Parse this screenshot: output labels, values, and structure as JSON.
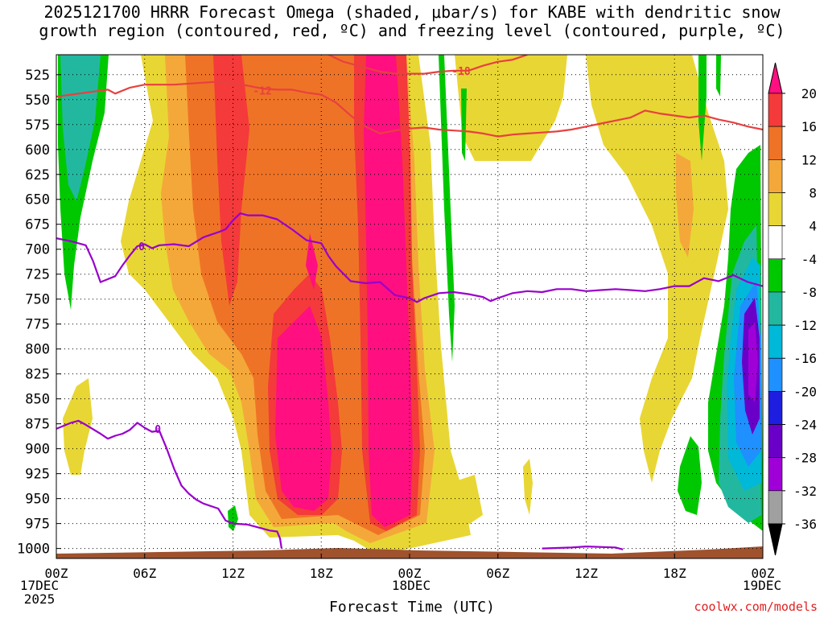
{
  "chart_data": {
    "type": "heatmap",
    "title_line1": "2025121700 HRRR Forecast Omega (shaded, μbar/s) for KABE with dendritic snow",
    "title_line2": "growth region (contoured, red, ºC) and freezing level (contoured, purple, ºC)",
    "xlabel": "Forecast Time (UTC)",
    "ylabel": "",
    "credit": "coolwx.com/models",
    "x_ticks": [
      "00Z",
      "06Z",
      "12Z",
      "18Z",
      "00Z",
      "06Z",
      "12Z",
      "18Z",
      "00Z"
    ],
    "x_dates": {
      "start": "17DEC",
      "start_year": "2025",
      "mid": "18DEC",
      "end": "19DEC"
    },
    "x_range_hours": [
      0,
      48
    ],
    "y_ticks": [
      "525",
      "550",
      "575",
      "600",
      "625",
      "650",
      "675",
      "700",
      "725",
      "750",
      "775",
      "800",
      "825",
      "850",
      "875",
      "900",
      "925",
      "950",
      "975",
      "1000"
    ],
    "y_range_hpa": [
      505,
      1010
    ],
    "colorbar_labels": [
      "20",
      "16",
      "12",
      "8",
      "4",
      "-4",
      "-8",
      "-12",
      "-16",
      "-20",
      "-24",
      "-28",
      "-32",
      "-36"
    ],
    "colorbar_colors": [
      "#ff0f80",
      "#f43a3a",
      "#ef7326",
      "#f4a83a",
      "#e8d634",
      "#ffffff",
      "#00c800",
      "#22b8a0",
      "#00b8d8",
      "#1e90ff",
      "#1e1ee0",
      "#6a00c8",
      "#a000d8",
      "#a0a0a0",
      "#000000"
    ],
    "dgz_contours": [
      {
        "label": "-12",
        "color": "#e84040",
        "points": [
          [
            0,
            547
          ],
          [
            2,
            543
          ],
          [
            3.5,
            540
          ],
          [
            4,
            544
          ],
          [
            5,
            538
          ],
          [
            6,
            535
          ],
          [
            8,
            535
          ],
          [
            10,
            533
          ],
          [
            11,
            532
          ],
          [
            12,
            534
          ],
          [
            13,
            536
          ],
          [
            14,
            539
          ],
          [
            15,
            540
          ],
          [
            16,
            540
          ],
          [
            17,
            543
          ],
          [
            18,
            545
          ],
          [
            19,
            553
          ],
          [
            20,
            566
          ],
          [
            21,
            577
          ],
          [
            22,
            584
          ],
          [
            23,
            581
          ],
          [
            24,
            579
          ],
          [
            25,
            578
          ],
          [
            26,
            580
          ],
          [
            27,
            581
          ],
          [
            28,
            582
          ],
          [
            29,
            584
          ],
          [
            30,
            587
          ],
          [
            31,
            585
          ],
          [
            32,
            584
          ],
          [
            33,
            583
          ],
          [
            34,
            582
          ],
          [
            35,
            580
          ],
          [
            36,
            577
          ],
          [
            37,
            574
          ],
          [
            38,
            571
          ],
          [
            39,
            568
          ],
          [
            40,
            561
          ],
          [
            41,
            564
          ],
          [
            42,
            566
          ],
          [
            43,
            568
          ],
          [
            44,
            566
          ],
          [
            45,
            570
          ],
          [
            46,
            573
          ],
          [
            47,
            577
          ],
          [
            48,
            580
          ]
        ],
        "label_at": [
          14,
          541
        ]
      },
      {
        "label": "-18",
        "color": "#e84040",
        "points": [
          [
            18.5,
            505
          ],
          [
            19.5,
            512
          ],
          [
            21,
            518
          ],
          [
            22,
            522
          ],
          [
            23,
            524
          ],
          [
            24,
            524
          ],
          [
            25,
            524
          ],
          [
            26,
            522
          ],
          [
            27,
            521
          ],
          [
            28,
            521
          ],
          [
            29,
            516
          ],
          [
            30,
            512
          ],
          [
            31,
            510
          ],
          [
            32,
            505
          ]
        ],
        "label_at": [
          27.5,
          521
        ]
      }
    ],
    "freezing_contours": [
      {
        "label": "0",
        "color": "#9900cc",
        "points": [
          [
            0,
            689
          ],
          [
            1,
            692
          ],
          [
            2,
            696
          ],
          [
            2.5,
            712
          ],
          [
            3,
            733
          ],
          [
            4,
            727
          ],
          [
            4.5,
            716
          ],
          [
            5,
            706
          ],
          [
            5.5,
            697
          ],
          [
            6,
            695
          ],
          [
            6.5,
            699
          ],
          [
            7,
            696
          ],
          [
            8,
            695
          ],
          [
            9,
            697
          ],
          [
            10,
            688
          ],
          [
            11,
            683
          ],
          [
            11.5,
            680
          ],
          [
            12,
            671
          ],
          [
            12.5,
            664
          ],
          [
            13,
            666
          ],
          [
            14,
            666
          ],
          [
            15,
            670
          ],
          [
            16,
            680
          ],
          [
            17,
            691
          ],
          [
            18,
            694
          ],
          [
            18.5,
            707
          ],
          [
            19,
            717
          ],
          [
            20,
            732
          ],
          [
            21,
            734
          ],
          [
            22,
            733
          ],
          [
            23,
            746
          ],
          [
            24,
            749
          ],
          [
            24.5,
            753
          ],
          [
            25,
            749
          ],
          [
            26,
            744
          ],
          [
            27,
            743
          ],
          [
            28,
            745
          ],
          [
            29,
            748
          ],
          [
            29.5,
            752
          ],
          [
            30,
            749
          ],
          [
            31,
            744
          ],
          [
            32,
            742
          ],
          [
            33,
            743
          ],
          [
            34,
            740
          ],
          [
            35,
            740
          ],
          [
            36,
            742
          ],
          [
            37,
            741
          ],
          [
            38,
            740
          ],
          [
            39,
            741
          ],
          [
            40,
            742
          ],
          [
            41,
            740
          ],
          [
            42,
            737
          ],
          [
            43,
            737
          ],
          [
            44,
            729
          ],
          [
            45,
            732
          ],
          [
            46,
            726
          ],
          [
            47,
            733
          ],
          [
            48,
            737
          ]
        ],
        "label_at": [
          5.8,
          697
        ]
      },
      {
        "label": "0",
        "color": "#9900cc",
        "points": [
          [
            0,
            880
          ],
          [
            0.5,
            877
          ],
          [
            1,
            874
          ],
          [
            1.5,
            872
          ],
          [
            2,
            876
          ],
          [
            3,
            885
          ],
          [
            3.5,
            890
          ],
          [
            4,
            887
          ],
          [
            4.5,
            885
          ],
          [
            5,
            881
          ],
          [
            5.5,
            874
          ],
          [
            6,
            879
          ],
          [
            6.5,
            883
          ],
          [
            7,
            882
          ],
          [
            7.5,
            900
          ],
          [
            8,
            920
          ],
          [
            8.5,
            937
          ],
          [
            9,
            945
          ],
          [
            9.5,
            951
          ],
          [
            10,
            955
          ],
          [
            11,
            960
          ],
          [
            11.5,
            972
          ],
          [
            12,
            975
          ],
          [
            13,
            976
          ],
          [
            14,
            980
          ],
          [
            14.5,
            982
          ],
          [
            15,
            983
          ],
          [
            15.2,
            990
          ],
          [
            15.3,
            1000
          ]
        ],
        "label_at": [
          6.9,
          880
        ]
      },
      {
        "label": "",
        "color": "#9900cc",
        "points": [
          [
            33,
            1000
          ],
          [
            35,
            999
          ],
          [
            36,
            998
          ],
          [
            38,
            999
          ],
          [
            38.5,
            1001
          ]
        ],
        "label_at": null
      }
    ],
    "ground_level_hpa": 1003
  }
}
